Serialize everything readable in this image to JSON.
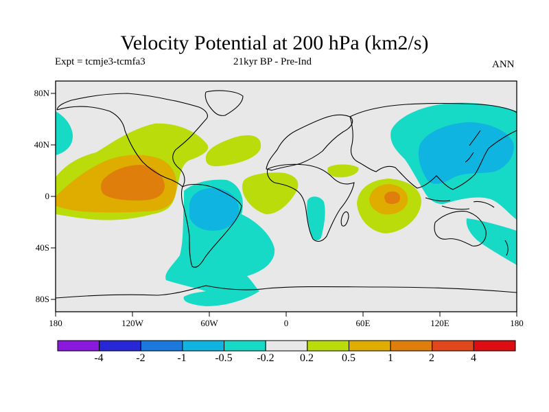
{
  "title": "Velocity Potential at 200 hPa (km2/s)",
  "subtitle_left": "Expt = tcmje3-tcmfa3",
  "subtitle_center": "21kyr BP - Pre-Ind",
  "subtitle_right": "ANN",
  "lat_labels": [
    "80N",
    "40N",
    "0",
    "40S",
    "80S"
  ],
  "lon_labels": [
    "180",
    "120W",
    "60W",
    "0",
    "60E",
    "120E",
    "180"
  ],
  "colorbar": {
    "labels": [
      "-4",
      "-2",
      "-1",
      "-0.5",
      "-0.2",
      "0.2",
      "0.5",
      "1",
      "2",
      "4"
    ],
    "colors": [
      "#8a19de",
      "#2727d8",
      "#1b78dc",
      "#10b4e0",
      "#16d9c6",
      "#e8e8e8",
      "#b9dc0a",
      "#dfad00",
      "#e07e0c",
      "#e0471a",
      "#dd0d12"
    ]
  },
  "map": {
    "background": "#e8e8e8",
    "projection": "cylindrical-equidistant",
    "lon_range": [
      -180,
      180
    ],
    "lat_range": [
      -90,
      90
    ]
  }
}
